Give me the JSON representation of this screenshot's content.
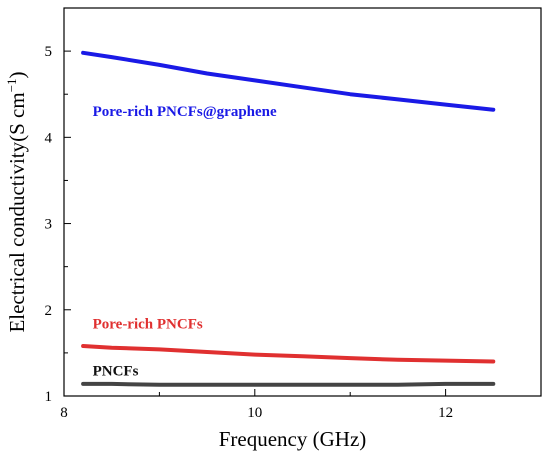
{
  "chart_data": {
    "type": "line",
    "xlabel": "Frequency (GHz)",
    "ylabel_main": "Electrical conductivity(S cm",
    "ylabel_sup": "−1",
    "ylabel_close": ")",
    "xlim": [
      8,
      13
    ],
    "ylim": [
      1,
      5.5
    ],
    "x_ticks": [
      8,
      10,
      12
    ],
    "x_tick_labels": [
      "8",
      "10",
      "12"
    ],
    "x_minor_ticks": [
      9,
      11,
      13
    ],
    "y_ticks": [
      1,
      2,
      3,
      4,
      5
    ],
    "y_tick_labels": [
      "1",
      "2",
      "3",
      "4",
      "5"
    ],
    "y_minor_ticks": [
      1.5,
      2.5,
      3.5,
      4.5,
      5.5
    ],
    "grid": false,
    "legend": "none",
    "series": [
      {
        "name": "Pore-rich PNCFs@graphene",
        "color": "#1a1ae6",
        "x": [
          8.2,
          8.5,
          9.0,
          9.5,
          10.0,
          10.5,
          11.0,
          11.5,
          12.0,
          12.5
        ],
        "y": [
          4.98,
          4.93,
          4.84,
          4.74,
          4.66,
          4.58,
          4.5,
          4.44,
          4.38,
          4.32
        ]
      },
      {
        "name": "Pore-rich PNCFs",
        "color": "#e03030",
        "x": [
          8.2,
          8.5,
          9.0,
          9.5,
          10.0,
          10.5,
          11.0,
          11.5,
          12.0,
          12.5
        ],
        "y": [
          1.58,
          1.56,
          1.54,
          1.51,
          1.48,
          1.46,
          1.44,
          1.42,
          1.41,
          1.4
        ]
      },
      {
        "name": "PNCFs",
        "color": "#444444",
        "x": [
          8.2,
          8.5,
          9.0,
          9.5,
          10.0,
          10.5,
          11.0,
          11.5,
          12.0,
          12.5
        ],
        "y": [
          1.14,
          1.14,
          1.13,
          1.13,
          1.13,
          1.13,
          1.13,
          1.13,
          1.14,
          1.14
        ]
      }
    ],
    "annotations": [
      {
        "text": "Pore-rich PNCFs@graphene",
        "color": "#1a1ae6",
        "x": 8.3,
        "y": 4.25
      },
      {
        "text": "Pore-rich PNCFs",
        "color": "#e03030",
        "x": 8.3,
        "y": 1.78
      },
      {
        "text": "PNCFs",
        "color": "#111111",
        "x": 8.3,
        "y": 1.24
      }
    ]
  }
}
